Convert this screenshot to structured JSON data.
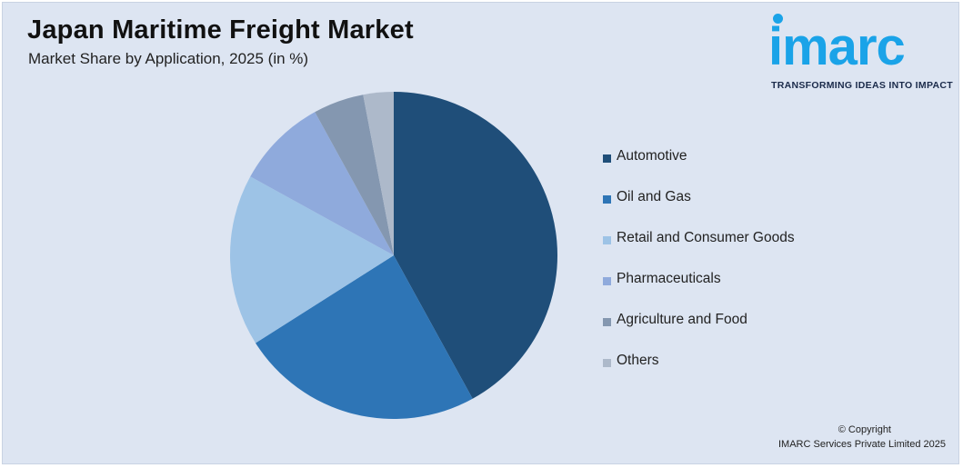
{
  "header": {
    "title": "Japan Maritime Freight Market",
    "subtitle": "Market Share by Application, 2025 (in %)"
  },
  "logo": {
    "wordmark": "imarc",
    "tagline": "TRANSFORMING IDEAS INTO IMPACT",
    "color": "#1aa3e8"
  },
  "chart_data": {
    "type": "pie",
    "title": "Japan Maritime Freight Market",
    "subtitle": "Market Share by Application, 2025 (in %)",
    "start_angle_deg": 0,
    "direction": "clockwise",
    "legend_position": "right",
    "slices": [
      {
        "label": "Automotive",
        "value": 42.0,
        "color": "#1f4e79"
      },
      {
        "label": "Oil and Gas",
        "value": 24.0,
        "color": "#2e75b6"
      },
      {
        "label": "Retail and Consumer Goods",
        "value": 17.0,
        "color": "#9dc3e6"
      },
      {
        "label": "Pharmaceuticals",
        "value": 9.0,
        "color": "#8faadc"
      },
      {
        "label": "Agriculture and Food",
        "value": 5.0,
        "color": "#8497b0"
      },
      {
        "label": "Others",
        "value": 3.0,
        "color": "#adb9ca"
      }
    ]
  },
  "footer": {
    "copyright_line1": "© Copyright",
    "copyright_line2": "IMARC Services Private Limited 2025"
  }
}
